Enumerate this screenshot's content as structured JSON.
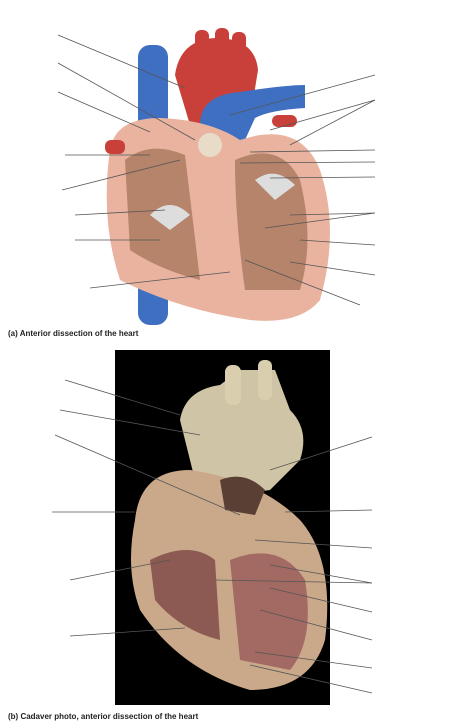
{
  "captions": {
    "a": "(a) Anterior dissection of the heart",
    "b": "(b) Cadaver photo, anterior dissection of the heart"
  }
}
